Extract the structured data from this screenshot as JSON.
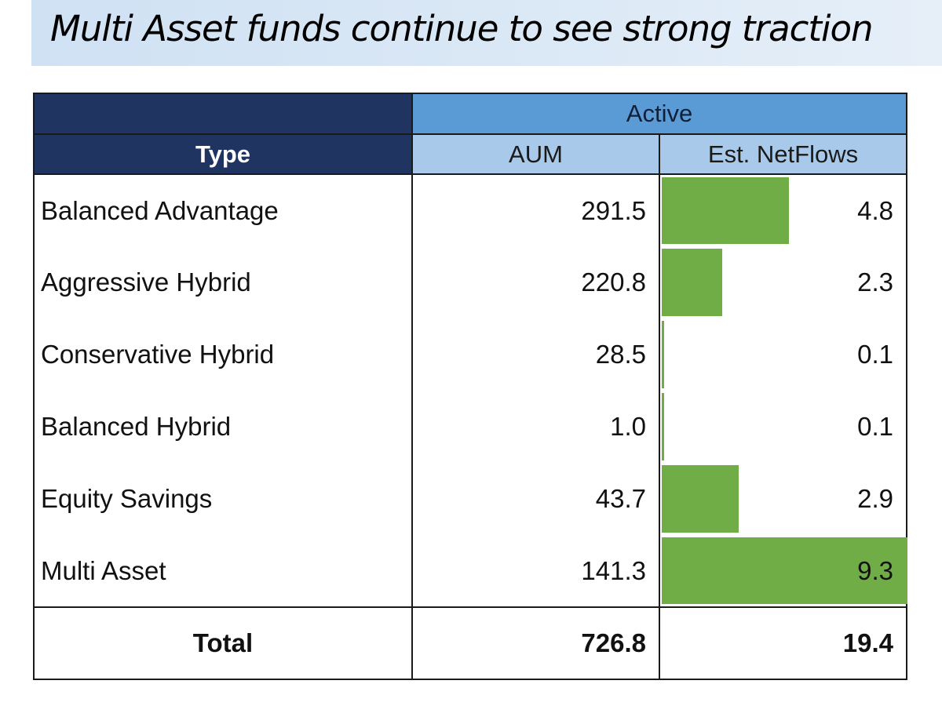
{
  "title": "Multi Asset funds continue to see strong traction",
  "table": {
    "group_header": "Active",
    "columns": {
      "type": "Type",
      "aum": "AUM",
      "flows": "Est. NetFlows"
    },
    "rows": [
      {
        "type": "Balanced Advantage",
        "aum": "291.5",
        "flows": "4.8",
        "flows_value": 4.8
      },
      {
        "type": "Aggressive Hybrid",
        "aum": "220.8",
        "flows": "2.3",
        "flows_value": 2.3
      },
      {
        "type": "Conservative Hybrid",
        "aum": "28.5",
        "flows": "0.1",
        "flows_value": 0.1
      },
      {
        "type": "Balanced Hybrid",
        "aum": "1.0",
        "flows": "0.1",
        "flows_value": 0.1
      },
      {
        "type": "Equity Savings",
        "aum": "43.7",
        "flows": "2.9",
        "flows_value": 2.9
      },
      {
        "type": "Multi Asset",
        "aum": "141.3",
        "flows": "9.3",
        "flows_value": 9.3
      }
    ],
    "total": {
      "label": "Total",
      "aum": "726.8",
      "flows": "19.4"
    }
  },
  "colors": {
    "header_dark": "#1f3460",
    "header_active": "#5b9bd5",
    "header_sub": "#a9c9ea",
    "data_bar": "#70ad47"
  }
}
